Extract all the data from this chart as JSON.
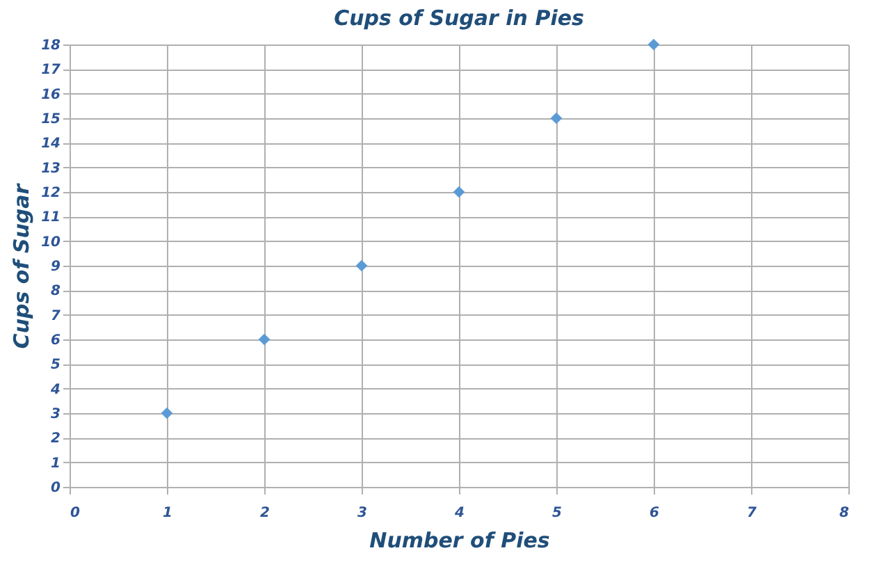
{
  "chart_data": {
    "type": "scatter",
    "title": "Cups of Sugar in Pies",
    "xlabel": "Number of Pies",
    "ylabel": "Cups of Sugar",
    "x": [
      1,
      2,
      3,
      4,
      5,
      6
    ],
    "series": [
      {
        "color": "#5b9bd5",
        "values": [
          3,
          6,
          9,
          12,
          15,
          18
        ]
      }
    ],
    "xlim": [
      0,
      8
    ],
    "xticks": [
      0,
      1,
      2,
      3,
      4,
      5,
      6,
      7,
      8
    ],
    "ylim": [
      0,
      18
    ],
    "yticks": [
      0,
      1,
      2,
      3,
      4,
      5,
      6,
      7,
      8,
      9,
      10,
      11,
      12,
      13,
      14,
      15,
      16,
      17,
      18
    ],
    "grid": true,
    "marker": "diamond"
  }
}
